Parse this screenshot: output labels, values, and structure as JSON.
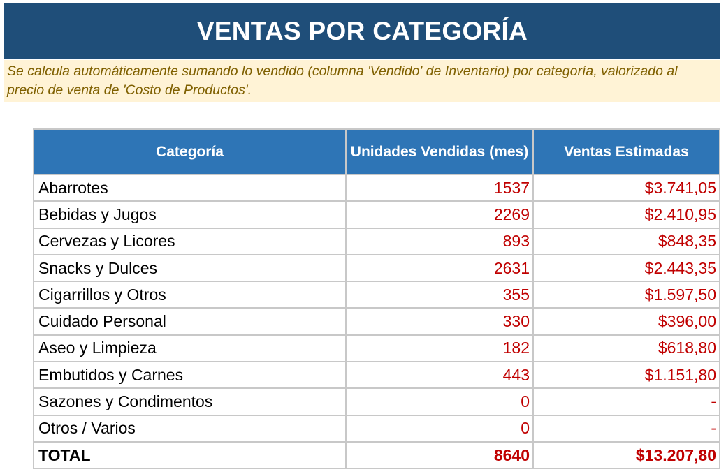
{
  "title": "VENTAS POR CATEGORÍA",
  "note": "Se calcula automáticamente sumando lo vendido (columna 'Vendido' de Inventario) por categoría, valorizado al precio de venta de 'Costo de Productos'.",
  "colors": {
    "title_bg": "#1f4e79",
    "header_bg": "#2e75b6",
    "note_bg": "#fff3d6",
    "note_text": "#7f6000",
    "value_text": "#c00000"
  },
  "table": {
    "headers": [
      "Categoría",
      "Unidades Vendidas (mes)",
      "Ventas Estimadas"
    ],
    "rows": [
      {
        "category": "Abarrotes",
        "units": "1537",
        "sales": "$3.741,05"
      },
      {
        "category": "Bebidas y Jugos",
        "units": "2269",
        "sales": "$2.410,95"
      },
      {
        "category": "Cervezas y Licores",
        "units": "893",
        "sales": "$848,35"
      },
      {
        "category": "Snacks y Dulces",
        "units": "2631",
        "sales": "$2.443,35"
      },
      {
        "category": "Cigarrillos y Otros",
        "units": "355",
        "sales": "$1.597,50"
      },
      {
        "category": "Cuidado Personal",
        "units": "330",
        "sales": "$396,00"
      },
      {
        "category": "Aseo y Limpieza",
        "units": "182",
        "sales": "$618,80"
      },
      {
        "category": "Embutidos y Carnes",
        "units": "443",
        "sales": "$1.151,80"
      },
      {
        "category": "Sazones y Condimentos",
        "units": "0",
        "sales": "-"
      },
      {
        "category": "Otros / Varios",
        "units": "0",
        "sales": "-"
      }
    ],
    "total": {
      "label": "TOTAL",
      "units": "8640",
      "sales": "$13.207,80"
    }
  }
}
